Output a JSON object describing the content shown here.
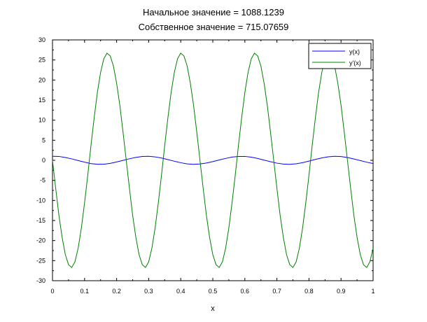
{
  "chart_data": {
    "type": "line",
    "title_lines": [
      "Начальное значение =  1088.1239",
      "Собственное значение = 715.07659"
    ],
    "xlabel": "x",
    "ylabel": "",
    "xlim": [
      0,
      1
    ],
    "ylim": [
      -30,
      30
    ],
    "x_ticks": [
      0,
      0.1,
      0.2,
      0.3,
      0.4,
      0.5,
      0.6,
      0.7,
      0.8,
      0.9,
      1
    ],
    "x_tick_labels": [
      "0",
      "0.1",
      "0.2",
      "0.3",
      "0.4",
      "0.5",
      "0.6",
      "0.7",
      "0.8",
      "0.9",
      "1"
    ],
    "y_ticks": [
      -30,
      -25,
      -20,
      -15,
      -10,
      -5,
      0,
      5,
      10,
      15,
      20,
      25,
      30
    ],
    "y_tick_labels": [
      "-30",
      "-25",
      "-20",
      "-15",
      "-10",
      "-5",
      "0",
      "5",
      "10",
      "15",
      "20",
      "25",
      "30"
    ],
    "grid": false,
    "legend_position": "top-right",
    "series": [
      {
        "name": "y(x)",
        "color": "#0000ff",
        "x": [
          0,
          0.02,
          0.04,
          0.06,
          0.08,
          0.1,
          0.12,
          0.14,
          0.16,
          0.18,
          0.2,
          0.22,
          0.24,
          0.26,
          0.28,
          0.3,
          0.32,
          0.34,
          0.36,
          0.38,
          0.4,
          0.42,
          0.44,
          0.46,
          0.48,
          0.5,
          0.52,
          0.54,
          0.56,
          0.58,
          0.6,
          0.62,
          0.64,
          0.66,
          0.68,
          0.7,
          0.72,
          0.74,
          0.76,
          0.78,
          0.8,
          0.82,
          0.84,
          0.86,
          0.88,
          0.9,
          0.92,
          0.94,
          0.96,
          0.98,
          1
        ],
        "y": [
          1,
          0.97,
          0.7,
          0.36,
          -0.06,
          -0.46,
          -0.82,
          -0.98,
          -0.98,
          -0.76,
          -0.42,
          -0.03,
          0.38,
          0.72,
          0.95,
          1,
          0.86,
          0.57,
          0.18,
          -0.23,
          -0.6,
          -0.89,
          -1,
          -0.92,
          -0.68,
          -0.33,
          0.08,
          0.47,
          0.81,
          0.97,
          0.97,
          0.78,
          0.46,
          0.05,
          -0.35,
          -0.71,
          -0.94,
          -1,
          -0.87,
          -0.58,
          -0.19,
          0.22,
          0.59,
          0.88,
          1,
          0.93,
          0.7,
          0.33,
          -0.07,
          -0.47,
          -0.8
        ]
      },
      {
        "name": "y'(x)",
        "color": "#008000",
        "x": [
          0,
          0.01,
          0.02,
          0.03,
          0.04,
          0.05,
          0.06,
          0.07,
          0.08,
          0.09,
          0.1,
          0.11,
          0.12,
          0.13,
          0.14,
          0.15,
          0.16,
          0.17,
          0.18,
          0.19,
          0.2,
          0.21,
          0.22,
          0.23,
          0.24,
          0.25,
          0.26,
          0.27,
          0.28,
          0.29,
          0.3,
          0.31,
          0.32,
          0.33,
          0.34,
          0.35,
          0.36,
          0.37,
          0.38,
          0.39,
          0.4,
          0.41,
          0.42,
          0.43,
          0.44,
          0.45,
          0.46,
          0.47,
          0.48,
          0.49,
          0.5,
          0.51,
          0.52,
          0.53,
          0.54,
          0.55,
          0.56,
          0.57,
          0.58,
          0.59,
          0.6,
          0.61,
          0.62,
          0.63,
          0.64,
          0.65,
          0.66,
          0.67,
          0.68,
          0.69,
          0.7,
          0.71,
          0.72,
          0.73,
          0.74,
          0.75,
          0.76,
          0.77,
          0.78,
          0.79,
          0.8,
          0.81,
          0.82,
          0.83,
          0.84,
          0.85,
          0.86,
          0.87,
          0.88,
          0.89,
          0.9,
          0.91,
          0.92,
          0.93,
          0.94,
          0.95,
          0.96,
          0.97,
          0.98,
          0.99,
          1
        ],
        "y": [
          0,
          -7,
          -13.7,
          -19.2,
          -23.5,
          -26,
          -26.7,
          -25.3,
          -21.9,
          -16.9,
          -10.6,
          -3.7,
          3.7,
          10.6,
          16.9,
          21.9,
          25.3,
          26.7,
          26,
          23.5,
          19.2,
          13.7,
          7,
          0,
          -7,
          -13.7,
          -19.2,
          -23.5,
          -26,
          -26.7,
          -25.3,
          -21.9,
          -16.9,
          -10.6,
          -3.7,
          3.7,
          10.6,
          16.9,
          21.9,
          25.3,
          26.7,
          26,
          23.5,
          19.2,
          13.7,
          7,
          0,
          -7,
          -13.7,
          -19.2,
          -23.5,
          -26,
          -26.7,
          -25.3,
          -21.9,
          -16.9,
          -10.6,
          -3.7,
          3.7,
          10.6,
          16.9,
          21.9,
          25.3,
          26.7,
          26,
          23.5,
          19.2,
          13.7,
          7,
          0,
          -7,
          -13.7,
          -19.2,
          -23.5,
          -26,
          -26.7,
          -25.3,
          -21.9,
          -16.9,
          -10.6,
          -3.7,
          3.7,
          10.6,
          16.9,
          21.9,
          25.3,
          26.7,
          26,
          23.5,
          19.2,
          13.7,
          7,
          0,
          -7,
          -13.7,
          -19.2,
          -23.5,
          -26,
          -26.7,
          -25.3,
          -21.9
        ]
      }
    ]
  }
}
